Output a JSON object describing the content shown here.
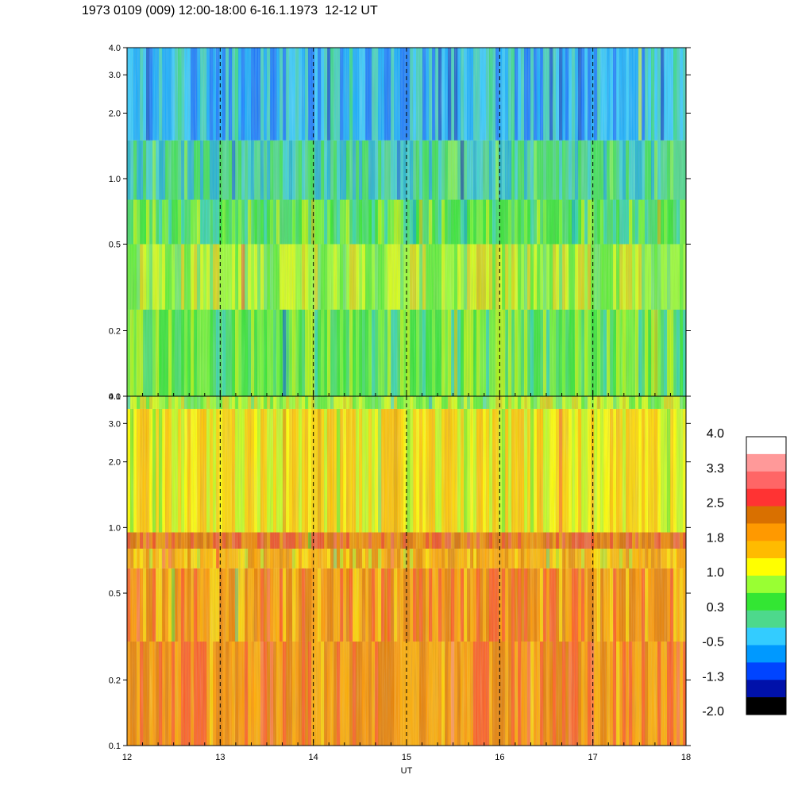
{
  "title": "1973 0109 (009) 12:00-18:00 6-16.1.1973  12-12 UT",
  "chart_data": [
    {
      "type": "heatmap",
      "panel": "upper",
      "xlim": [
        12,
        18
      ],
      "ylim": [
        0.1,
        4.0
      ],
      "yscale": "log",
      "x_ticks": [
        12,
        13,
        14,
        15,
        16,
        17,
        18
      ],
      "y_ticks": [
        "0.1",
        "0.2",
        "0.5",
        "1.0",
        "2.0",
        "3.0",
        "4.0"
      ],
      "hour_markers": [
        13,
        14,
        15,
        16,
        17
      ],
      "bands": [
        {
          "y": [
            0.1,
            0.25
          ],
          "level": 0.5
        },
        {
          "y": [
            0.25,
            0.5
          ],
          "level": 0.8
        },
        {
          "y": [
            0.5,
            0.8
          ],
          "level": 0.4
        },
        {
          "y": [
            0.8,
            1.5
          ],
          "level": -0.1
        },
        {
          "y": [
            1.5,
            4.0
          ],
          "level": -0.5
        }
      ]
    },
    {
      "type": "heatmap",
      "panel": "lower",
      "xlim": [
        12,
        18
      ],
      "ylim": [
        0.1,
        4.0
      ],
      "yscale": "log",
      "xlabel": "UT",
      "x_ticks": [
        12,
        13,
        14,
        15,
        16,
        17,
        18
      ],
      "y_ticks": [
        "0.1",
        "0.2",
        "0.5",
        "1.0",
        "2.0",
        "3.0",
        "4.0"
      ],
      "hour_markers": [
        13,
        14,
        15,
        16,
        17
      ],
      "bands": [
        {
          "y": [
            0.1,
            0.3
          ],
          "level": 2.1
        },
        {
          "y": [
            0.3,
            0.65
          ],
          "level": 1.9
        },
        {
          "y": [
            0.65,
            0.8
          ],
          "level": 1.6
        },
        {
          "y": [
            0.8,
            0.95
          ],
          "level": 2.3
        },
        {
          "y": [
            0.95,
            3.5
          ],
          "level": 1.3
        },
        {
          "y": [
            3.5,
            4.0
          ],
          "level": 0.9
        }
      ]
    }
  ],
  "colorbar": {
    "labels": [
      "4.0",
      "3.3",
      "2.5",
      "1.8",
      "1.0",
      "0.3",
      "-0.5",
      "-1.3",
      "-2.0"
    ],
    "colors": [
      "#ffffff",
      "#ff9999",
      "#ff6666",
      "#ff3333",
      "#d97000",
      "#ff9900",
      "#ffbb00",
      "#ffff00",
      "#99ff33",
      "#33e633",
      "#4dd98c",
      "#33ccff",
      "#0099ff",
      "#0044ff",
      "#0011aa",
      "#000000"
    ]
  }
}
